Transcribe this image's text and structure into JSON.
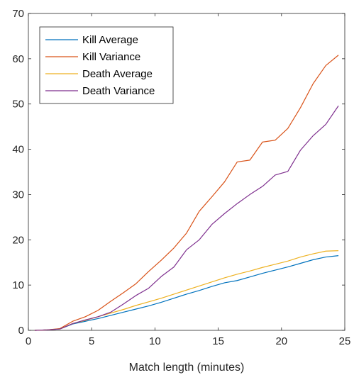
{
  "chart_data": {
    "type": "line",
    "xlabel": "Match length (minutes)",
    "ylabel": "",
    "xlim": [
      0,
      25
    ],
    "ylim": [
      0,
      70
    ],
    "xticks": [
      "0",
      "5",
      "10",
      "15",
      "20",
      "25"
    ],
    "yticks": [
      "0",
      "10",
      "20",
      "30",
      "40",
      "50",
      "60",
      "70"
    ],
    "grid": false,
    "legend_position": "top-left",
    "x": [
      0.5,
      1.5,
      2.5,
      3.5,
      4.5,
      5.5,
      6.5,
      7.5,
      8.5,
      9.5,
      10.5,
      11.5,
      12.5,
      13.5,
      14.5,
      15.5,
      16.5,
      17.5,
      18.5,
      19.5,
      20.5,
      21.5,
      22.5,
      23.5,
      24.5
    ],
    "series": [
      {
        "name": "Kill Average",
        "color": "#0072BD",
        "values": [
          0,
          0.1,
          0.3,
          1.4,
          2.0,
          2.6,
          3.3,
          4.0,
          4.7,
          5.4,
          6.2,
          7.1,
          8.0,
          8.8,
          9.7,
          10.5,
          11.0,
          11.8,
          12.6,
          13.3,
          14.0,
          14.8,
          15.6,
          16.2,
          16.5
        ]
      },
      {
        "name": "Kill Variance",
        "color": "#D95319",
        "values": [
          0,
          0.1,
          0.4,
          2.0,
          3.0,
          4.4,
          6.4,
          8.3,
          10.3,
          13.0,
          15.5,
          18.2,
          21.5,
          26.3,
          29.5,
          32.8,
          37.2,
          37.6,
          41.6,
          42.0,
          44.6,
          49.2,
          54.5,
          58.5,
          60.8
        ]
      },
      {
        "name": "Death Average",
        "color": "#EDB120",
        "values": [
          0,
          0.1,
          0.3,
          1.5,
          2.2,
          3.0,
          3.8,
          4.6,
          5.5,
          6.3,
          7.1,
          8.0,
          8.9,
          9.8,
          10.7,
          11.6,
          12.4,
          13.1,
          13.9,
          14.6,
          15.3,
          16.2,
          16.9,
          17.5,
          17.6
        ]
      },
      {
        "name": "Death Variance",
        "color": "#7E2F8E",
        "values": [
          0,
          0.1,
          0.3,
          1.5,
          2.3,
          3.0,
          4.0,
          5.8,
          7.7,
          9.3,
          11.9,
          14.0,
          17.8,
          20.0,
          23.4,
          25.8,
          28.0,
          30.0,
          31.8,
          34.3,
          35.1,
          39.8,
          43.0,
          45.5,
          49.6
        ]
      }
    ]
  }
}
